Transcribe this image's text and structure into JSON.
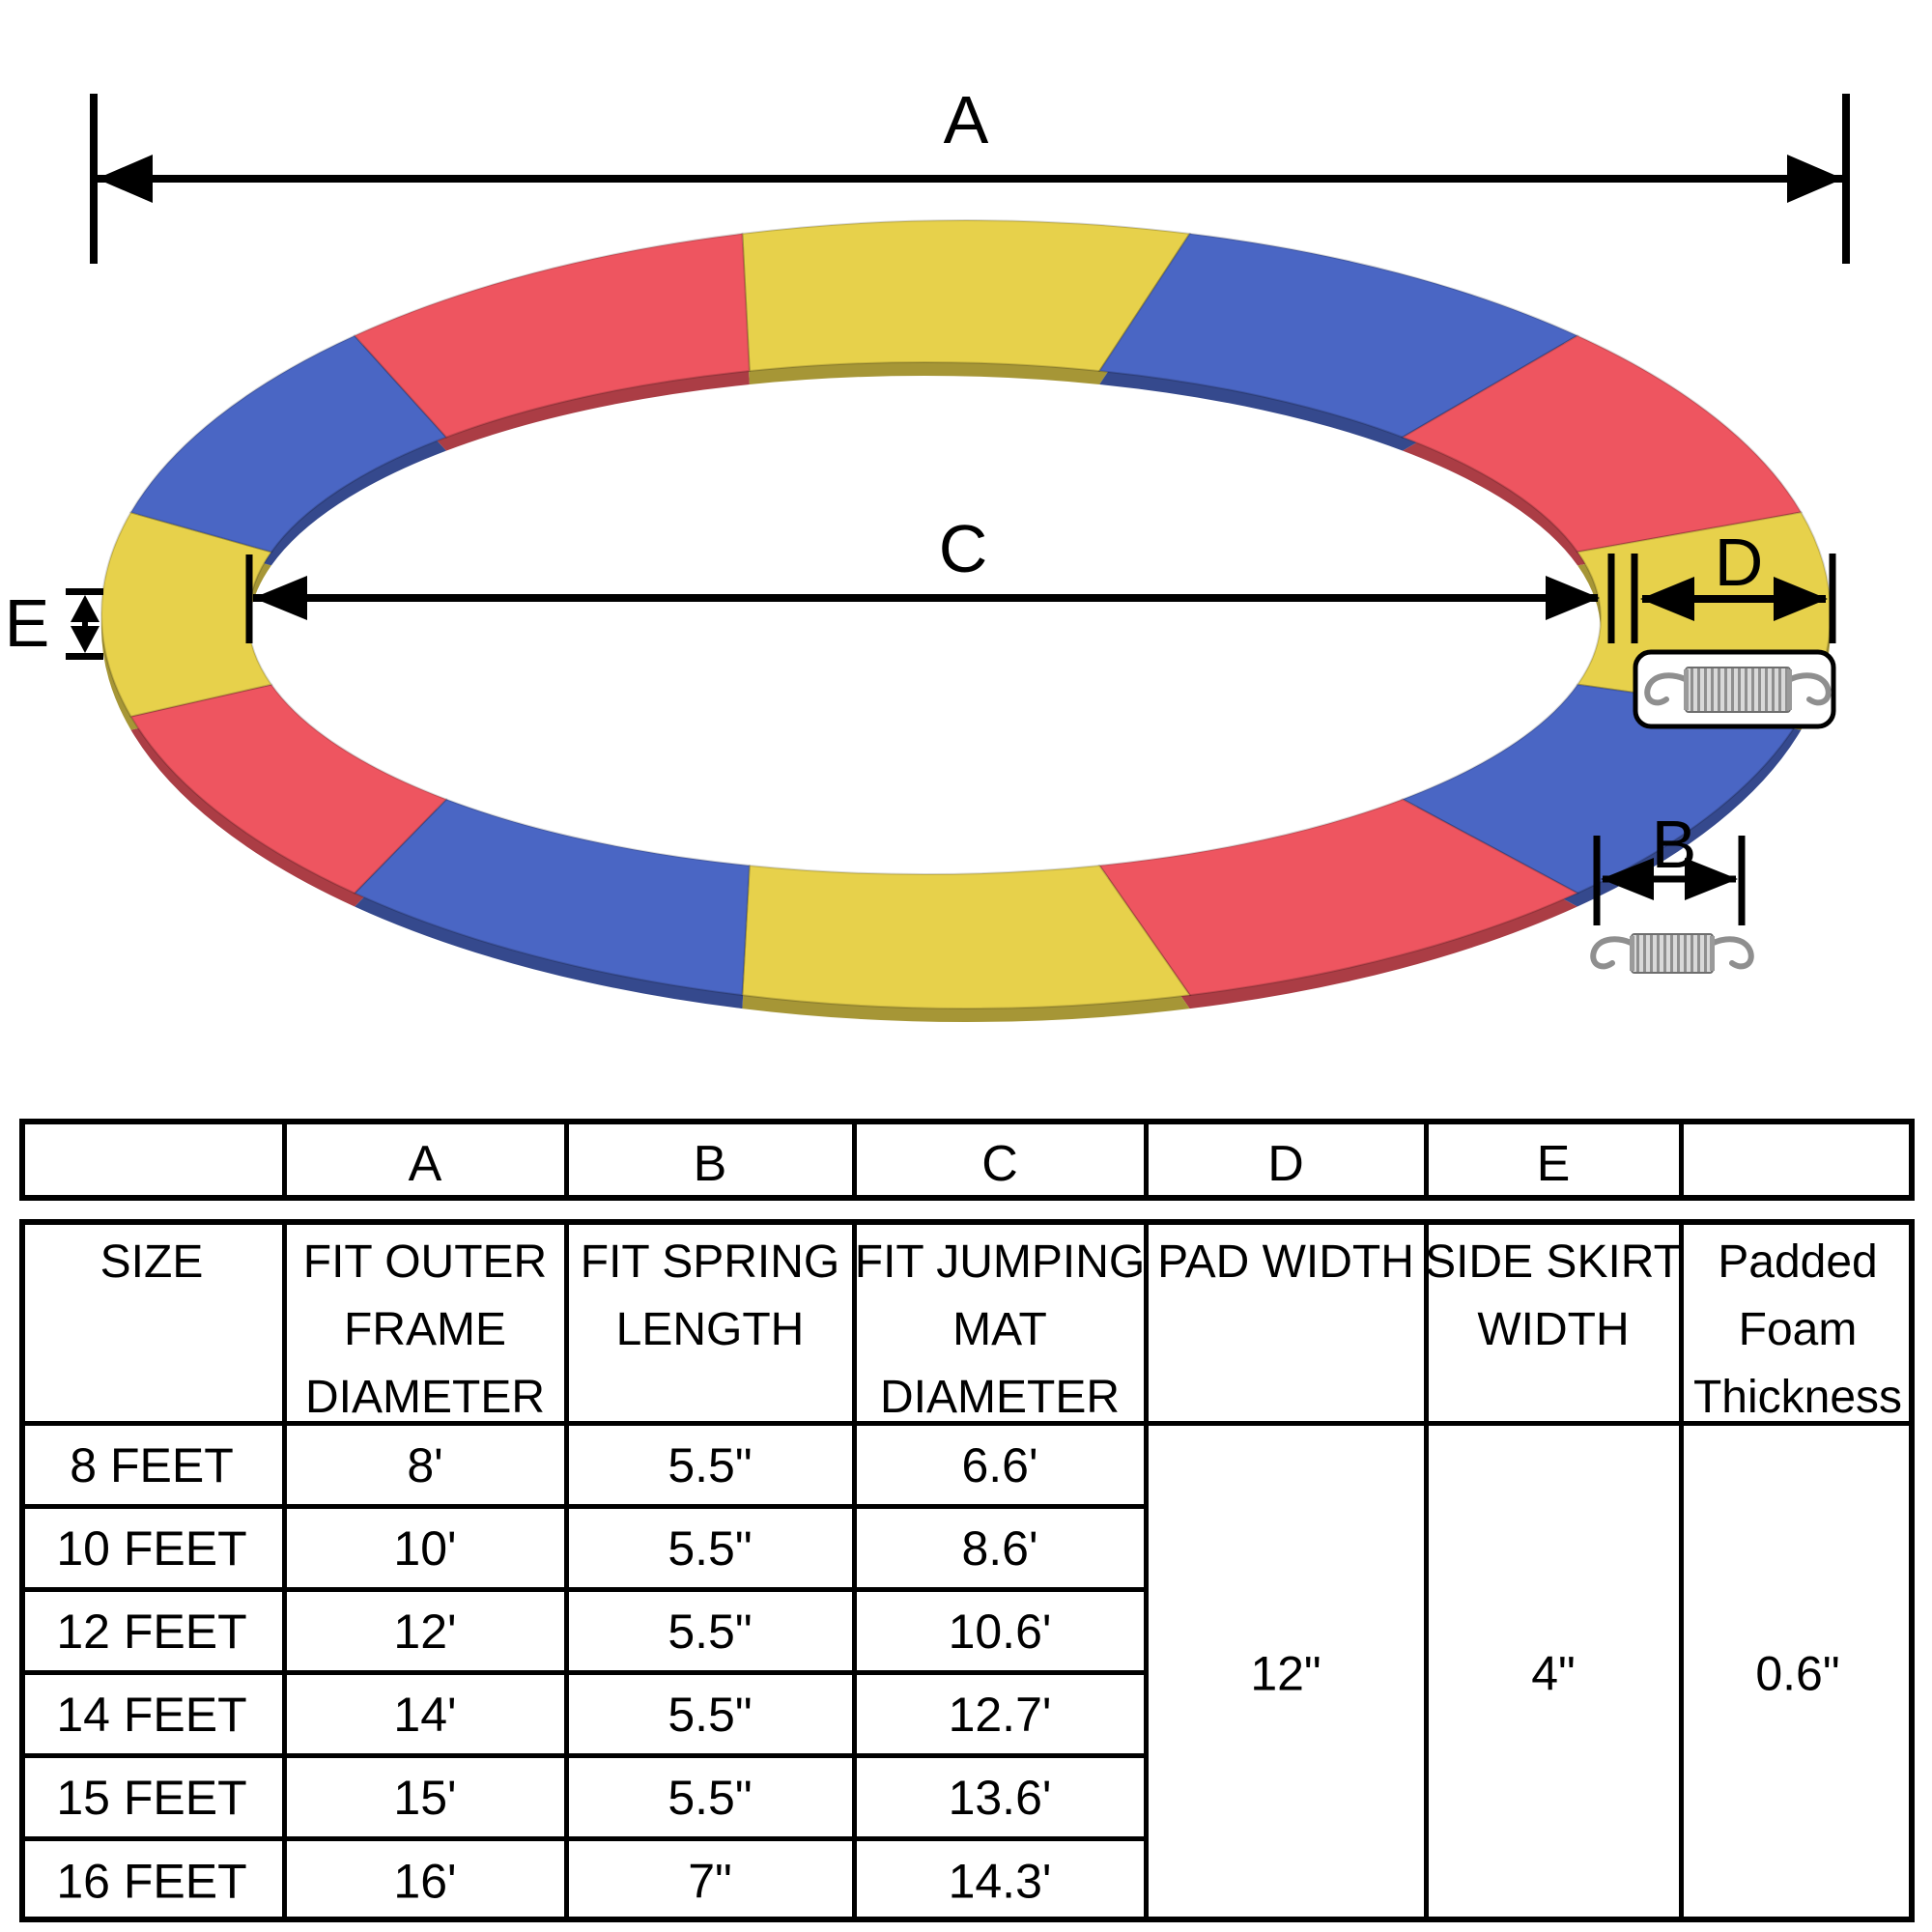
{
  "diagram": {
    "labels": {
      "outer_frame_diameter": "A",
      "spring_length": "B",
      "jumping_mat_diameter": "C",
      "pad_width": "D",
      "side_skirt_width": "E"
    },
    "colors": {
      "yellow": "#e7d14b",
      "blue": "#4a66c4",
      "red": "#ee5560"
    },
    "segment_order": [
      "yellow",
      "blue",
      "red",
      "yellow",
      "blue",
      "red",
      "yellow",
      "blue",
      "red",
      "yellow",
      "blue",
      "red"
    ],
    "icons": [
      "spring-icon-boxed",
      "spring-icon"
    ]
  },
  "table": {
    "letters": [
      "",
      "A",
      "B",
      "C",
      "D",
      "E",
      ""
    ],
    "headers": [
      [
        "SIZE"
      ],
      [
        "FIT OUTER",
        "FRAME",
        "DIAMETER"
      ],
      [
        "FIT SPRING",
        "LENGTH"
      ],
      [
        "FIT JUMPING",
        "MAT",
        "DIAMETER"
      ],
      [
        "PAD WIDTH"
      ],
      [
        "SIDE SKIRT",
        "WIDTH"
      ],
      [
        "Padded",
        "Foam",
        "Thickness"
      ]
    ],
    "rows": [
      [
        "8 FEET",
        "8'",
        "5.5\"",
        "6.6'"
      ],
      [
        "10 FEET",
        "10'",
        "5.5\"",
        "8.6'"
      ],
      [
        "12 FEET",
        "12'",
        "5.5\"",
        "10.6'"
      ],
      [
        "14 FEET",
        "14'",
        "5.5\"",
        "12.7'"
      ],
      [
        "15 FEET",
        "15'",
        "5.5\"",
        "13.6'"
      ],
      [
        "16 FEET",
        "16'",
        "7\"",
        "14.3'"
      ]
    ],
    "merged_values": {
      "pad_width": "12\"",
      "side_skirt_width": "4\"",
      "padded_foam_thickness": "0.6\""
    }
  }
}
